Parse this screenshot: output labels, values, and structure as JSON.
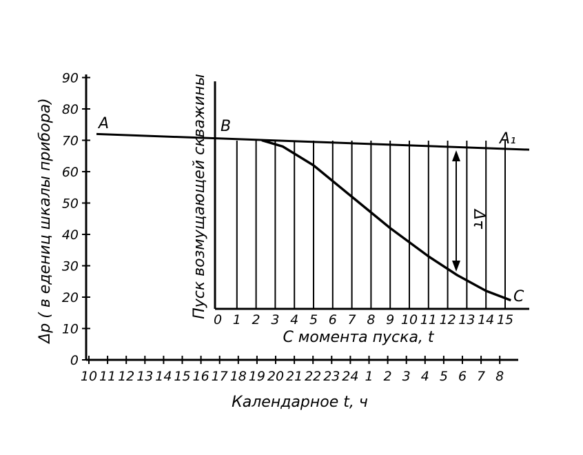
{
  "chart_data": {
    "type": "line",
    "ylabel": "Δp ( в едениц шкалы прибора)",
    "xlabel": "Календарное t, ч",
    "inner_xlabel": "С момента пуска, t",
    "event_label": "Пуск возмущающей скважины",
    "delta_label": "Δτ",
    "point_labels": {
      "A": "A",
      "B": "B",
      "A1": "A₁",
      "C": "C"
    },
    "y_ticks": [
      "0",
      "10",
      "20",
      "30",
      "40",
      "50",
      "60",
      "70",
      "80",
      "90"
    ],
    "ylim": [
      0,
      90
    ],
    "calendar_ticks": [
      "10",
      "11",
      "12",
      "13",
      "14",
      "15",
      "16",
      "17",
      "18",
      "19",
      "20",
      "21",
      "22",
      "23",
      "24",
      "1",
      "2",
      "3",
      "4",
      "5",
      "6",
      "7",
      "8"
    ],
    "start_ticks": [
      "0",
      "1",
      "2",
      "3",
      "4",
      "5",
      "6",
      "7",
      "8",
      "9",
      "10",
      "11",
      "12",
      "13",
      "14",
      "15"
    ],
    "series": [
      {
        "name": "AA₁",
        "x": [
          0,
          16
        ],
        "y": [
          72,
          67
        ]
      },
      {
        "name": "BC",
        "x": [
          2.3,
          3.4,
          5,
          7,
          9,
          11,
          12.5,
          14,
          15.3
        ],
        "y": [
          70,
          68,
          62,
          52,
          42,
          33,
          27,
          22,
          19
        ]
      }
    ],
    "grid": "vertical lines 0–15"
  }
}
